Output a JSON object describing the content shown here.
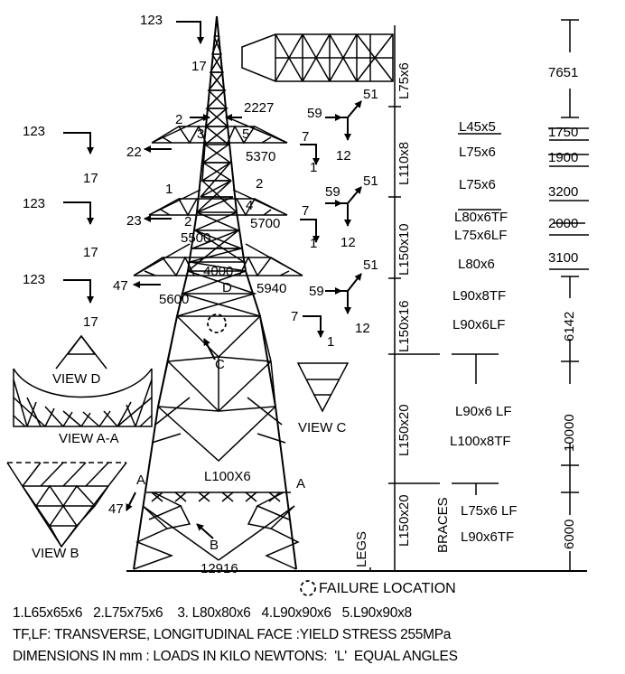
{
  "tower_loads": {
    "top": {
      "transverse": "123",
      "vertical": "17"
    },
    "arm1_left": {
      "transverse": "123",
      "vertical": "17",
      "longitudinal": "22"
    },
    "arm2_left": {
      "transverse": "123",
      "vertical": "17",
      "longitudinal": "23"
    },
    "arm3_left": {
      "transverse": "123",
      "vertical": "17",
      "longitudinal": "47"
    },
    "right_1": {
      "a": "59",
      "b": "51",
      "c": "12",
      "d": "7",
      "e": "1"
    },
    "right_2": {
      "a": "59",
      "b": "51",
      "c": "12",
      "d": "7",
      "e": "1"
    },
    "right_3": {
      "a": "59",
      "b": "51",
      "c": "12",
      "d": "7",
      "e": "1"
    },
    "base_longitudinal": "47"
  },
  "tower_labels": {
    "n2a": "2",
    "n2227": "2227",
    "n3": "3",
    "n5": "5",
    "n5370": "5370",
    "n1": "1",
    "n2b": "2",
    "n2c": "2",
    "n4": "4",
    "n5500": "5500",
    "n5700": "5700",
    "n4000": "4000",
    "nD": "D",
    "n5600": "5600",
    "n5940": "5940",
    "nC": "C",
    "nA1": "A",
    "nA2": "A",
    "l100x6": "L100X6",
    "nB": "B",
    "base": "12916"
  },
  "views": {
    "view_d": "VIEW D",
    "view_aa": "VIEW A-A",
    "view_b": "VIEW B",
    "view_c": "VIEW C"
  },
  "legs": [
    "L75x6",
    "L110x8",
    "L150x10",
    "L150x16",
    "L150x20",
    "L150x20"
  ],
  "legs_header": "LEGS",
  "braces_header": "BRACES",
  "braces": [
    "L45x5",
    "L75x6",
    "L75x6",
    "L80x6TF",
    "L75x6LF",
    "L80x6",
    "L90x8TF",
    "L90x6LF",
    "L90x6 LF",
    "L100x8TF",
    "L75x6 LF",
    "L90x6TF"
  ],
  "heights": [
    "7651",
    "1750",
    "1900",
    "3200",
    "2000",
    "3100",
    "6142",
    "10000",
    "6000"
  ],
  "failure_location": "FAILURE LOCATION",
  "legend": [
    "1.L65x65x6   2.L75x75x6    3. L80x80x6   4.L90x90x6   5.L90x90x8",
    "TF,LF: TRANSVERSE, LONGITUDINAL FACE :YIELD STRESS 255MPa",
    "DIMENSIONS IN mm : LOADS IN KILO NEWTONS:  'L'  EQUAL ANGLES"
  ]
}
